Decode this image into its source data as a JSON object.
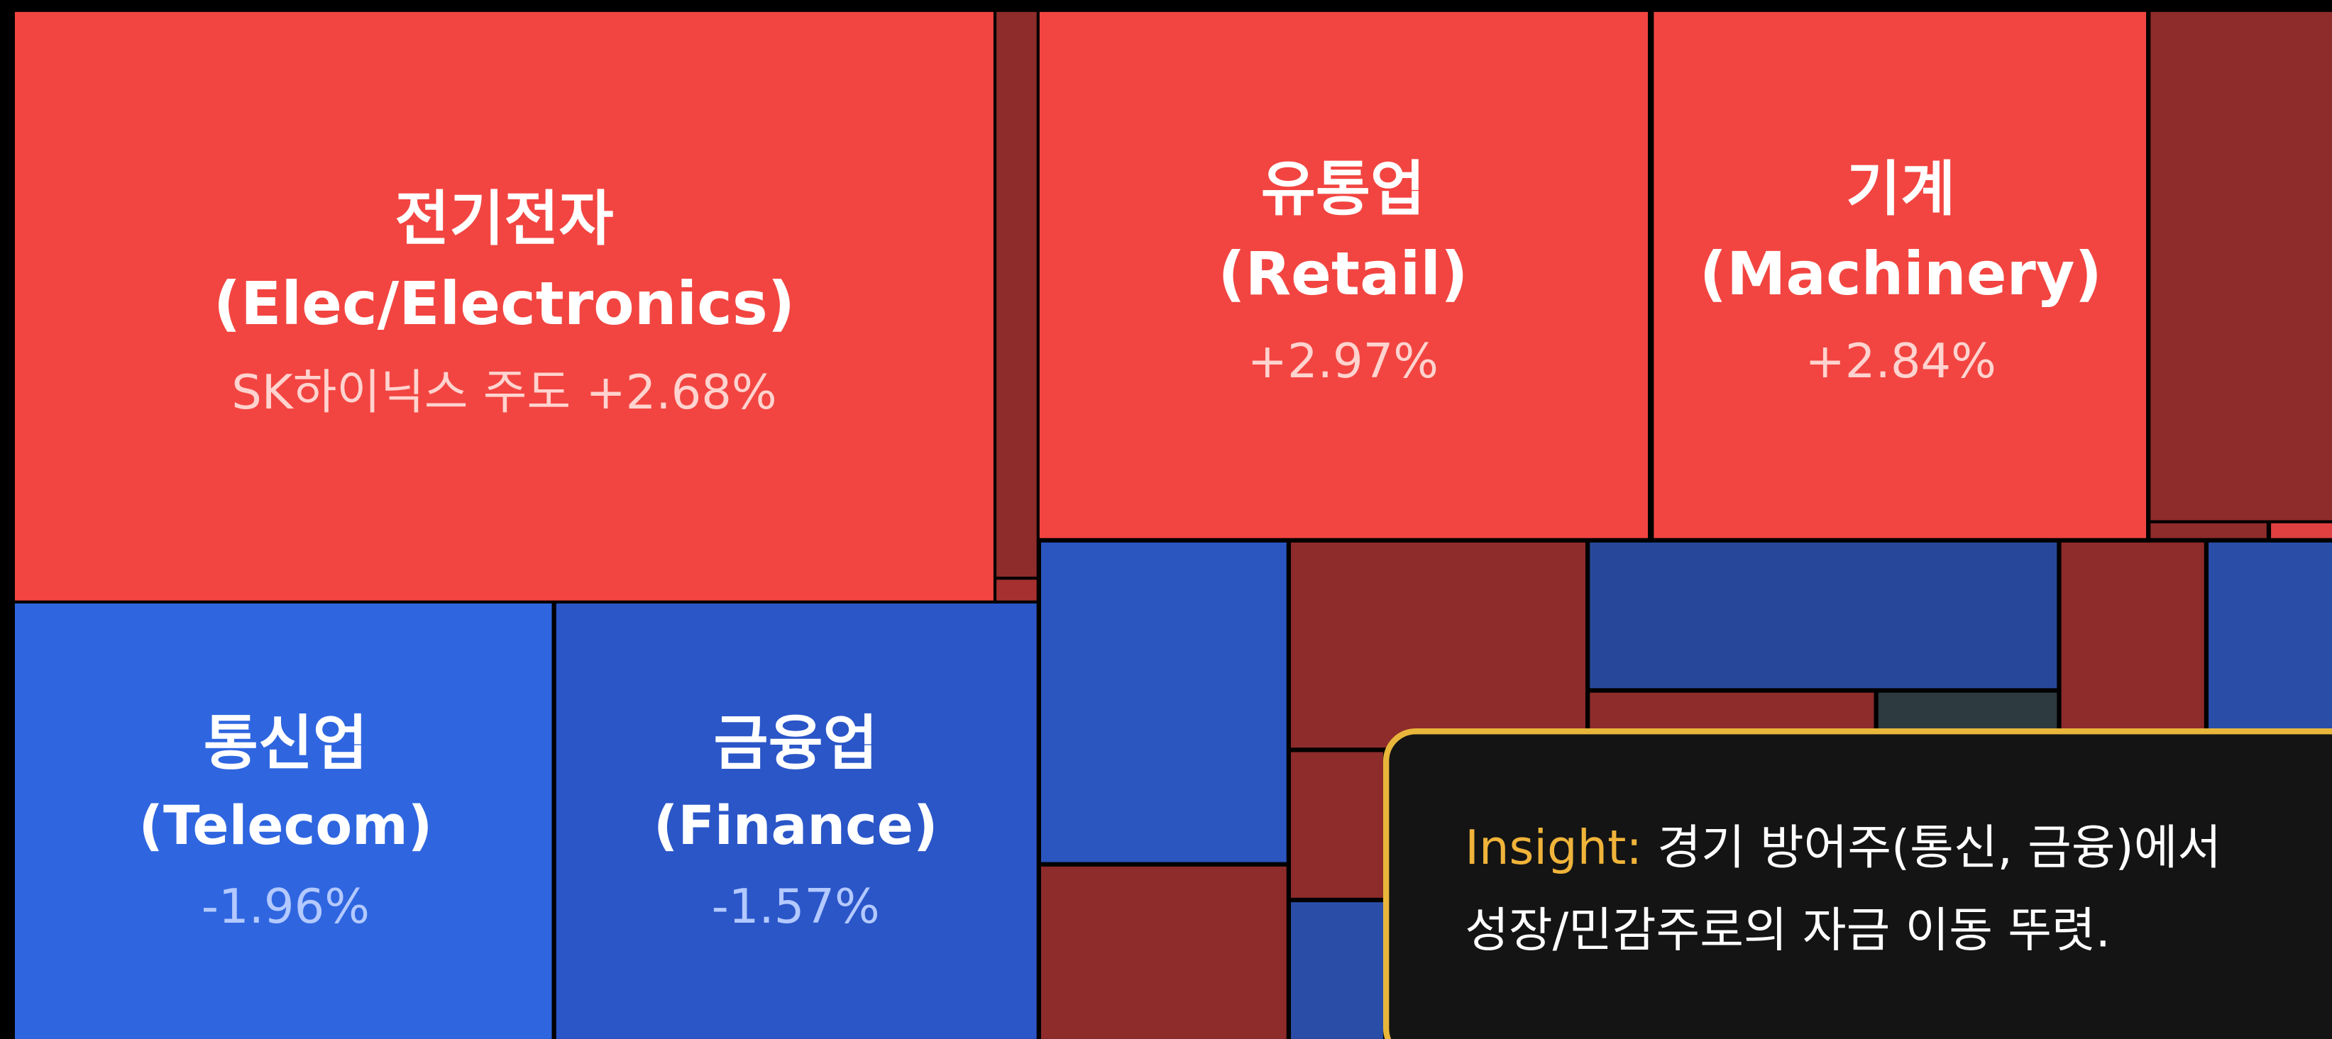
{
  "tiles": [
    {
      "name": "전기전자",
      "subtitle": "(Elec/Electronics)",
      "note": "SK하이닉스 주도 +2.68%"
    },
    {
      "name": "유통업",
      "subtitle": "(Retail)",
      "note": "+2.97%"
    },
    {
      "name": "기계",
      "subtitle": "(Machinery)",
      "note": "+2.84%"
    },
    {
      "name": "통신업",
      "subtitle": "(Telecom)",
      "note": "-1.96%"
    },
    {
      "name": "금융업",
      "subtitle": "(Finance)",
      "note": "-1.57%"
    }
  ],
  "insight": {
    "label": "Insight:",
    "line1": " 경기 방어주(통신, 금융)에서",
    "line2": "성장/민감주로의 자금 이동 뚜렷."
  }
}
